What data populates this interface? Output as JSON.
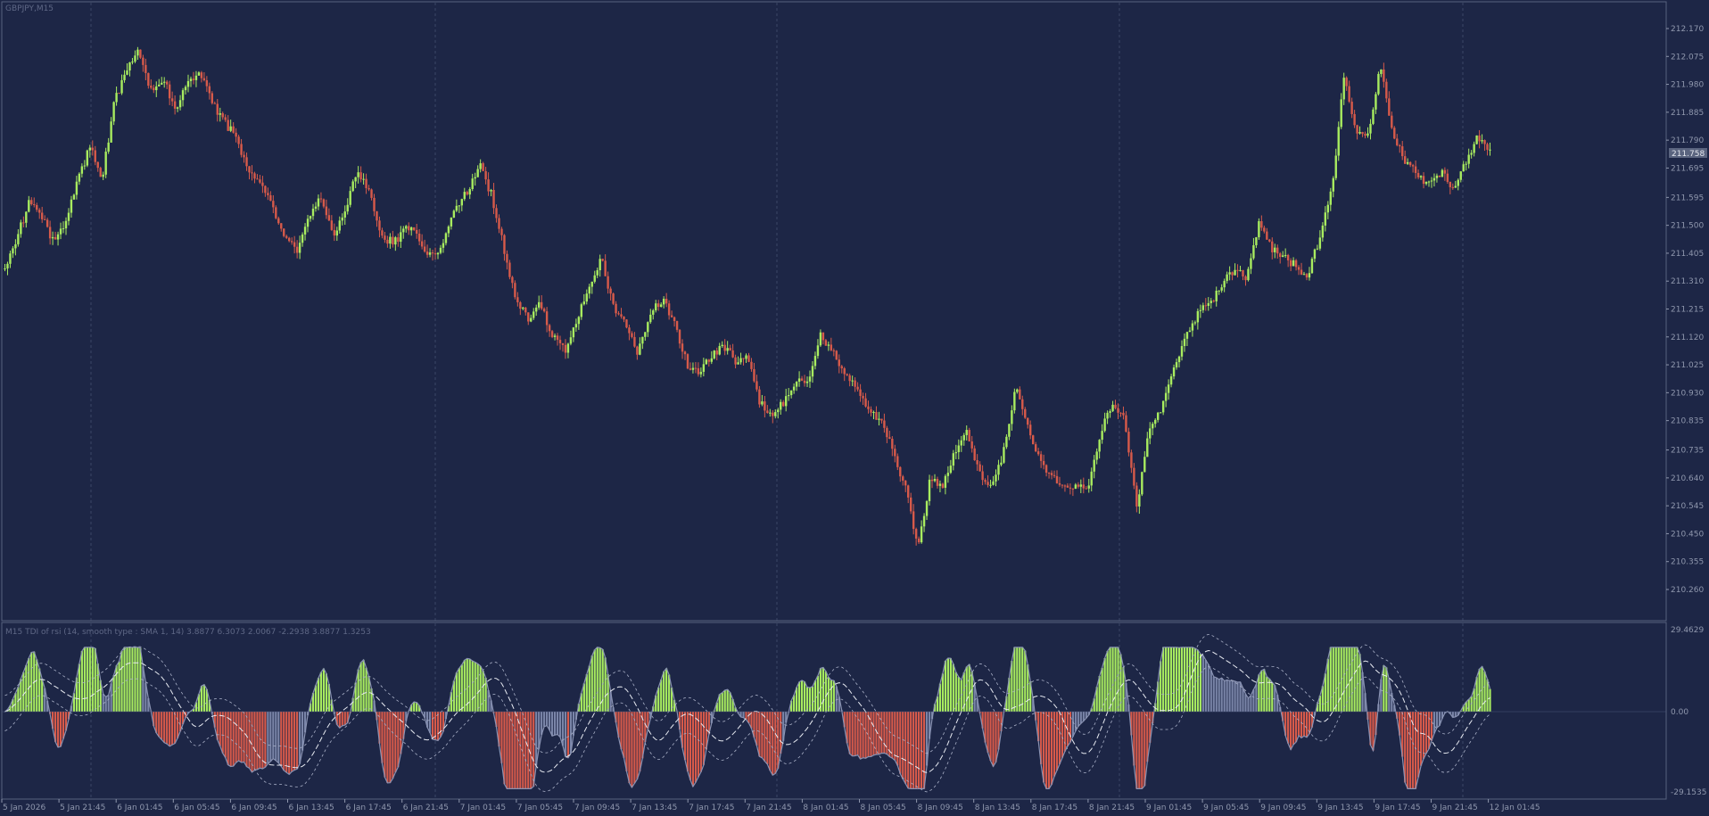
{
  "main_pane": {
    "title": "GBPJPY,M15",
    "price_label": "211.758"
  },
  "indicator_pane": {
    "title": "M15 TDI of rsi  (14, smooth type : SMA 1, 14) 3.8877 6.3073 2.0067 -2.2938 3.8877 1.3253",
    "labels": [
      "29.4629",
      "0.00",
      "-29.1535"
    ]
  },
  "colors": {
    "background": "#1d2646",
    "bull": "#a8ec5f",
    "bear": "#d75a4a",
    "grid": "#3a4566",
    "neutral": "#7a85a8"
  },
  "chart_data": [
    {
      "type": "candlestick",
      "title": "GBPJPY,M15",
      "ylim": [
        210.26,
        212.17
      ],
      "y_ticks": [
        "212.170",
        "212.075",
        "211.980",
        "211.885",
        "211.790",
        "211.695",
        "211.595",
        "211.500",
        "211.405",
        "211.310",
        "211.215",
        "211.120",
        "211.025",
        "210.930",
        "210.835",
        "210.735",
        "210.640",
        "210.545",
        "210.450",
        "210.355",
        "210.260"
      ],
      "x_ticks": [
        "5 Jan 2026",
        "5 Jan 21:45",
        "6 Jan 01:45",
        "6 Jan 05:45",
        "6 Jan 09:45",
        "6 Jan 13:45",
        "6 Jan 17:45",
        "6 Jan 21:45",
        "7 Jan 01:45",
        "7 Jan 05:45",
        "7 Jan 09:45",
        "7 Jan 13:45",
        "7 Jan 17:45",
        "7 Jan 21:45",
        "8 Jan 01:45",
        "8 Jan 05:45",
        "8 Jan 09:45",
        "8 Jan 13:45",
        "8 Jan 17:45",
        "8 Jan 21:45",
        "9 Jan 01:45",
        "9 Jan 05:45",
        "9 Jan 09:45",
        "9 Jan 13:45",
        "9 Jan 17:45",
        "9 Jan 21:45",
        "12 Jan 01:45"
      ],
      "current_price": 211.758,
      "close_path": [
        211.36,
        211.46,
        211.58,
        211.53,
        211.44,
        211.52,
        211.65,
        211.77,
        211.66,
        211.92,
        212.02,
        212.1,
        211.96,
        212.0,
        211.9,
        211.98,
        212.03,
        211.92,
        211.85,
        211.8,
        211.68,
        211.64,
        211.56,
        211.46,
        211.42,
        211.52,
        211.6,
        211.47,
        211.56,
        211.69,
        211.6,
        211.46,
        211.44,
        211.5,
        211.45,
        211.39,
        211.43,
        211.56,
        211.62,
        211.71,
        211.6,
        211.42,
        211.24,
        211.18,
        211.23,
        211.12,
        211.07,
        211.17,
        211.3,
        211.39,
        211.22,
        211.17,
        211.06,
        211.2,
        211.25,
        211.16,
        211.03,
        210.99,
        211.06,
        211.09,
        211.04,
        211.06,
        210.9,
        210.84,
        210.9,
        210.98,
        210.97,
        211.13,
        211.07,
        211.0,
        210.95,
        210.87,
        210.83,
        210.73,
        210.6,
        210.4,
        210.64,
        210.61,
        210.73,
        210.79,
        210.67,
        210.6,
        210.72,
        210.95,
        210.82,
        210.7,
        210.65,
        210.6,
        210.62,
        210.6,
        210.8,
        210.9,
        210.83,
        210.55,
        210.8,
        210.88,
        211.0,
        211.13,
        211.2,
        211.23,
        211.3,
        211.35,
        211.32,
        211.51,
        211.42,
        211.4,
        211.36,
        211.32,
        211.46,
        211.62,
        212.0,
        211.83,
        211.8,
        212.05,
        211.82,
        211.72,
        211.67,
        211.64,
        211.68,
        211.63,
        211.72,
        211.8,
        211.76
      ]
    },
    {
      "type": "indicator",
      "title": "M15 TDI of rsi  (14, smooth type : SMA 1, 14) 3.8877 6.3073 2.0067 -2.2938 3.8877 1.3253",
      "ylim": [
        -29.1535,
        29.4629
      ],
      "y_ticks": [
        "29.4629",
        "0.00",
        "-29.1535"
      ],
      "params": [
        3.8877,
        6.3073,
        2.0067,
        -2.2938,
        3.8877,
        1.3253
      ]
    }
  ]
}
